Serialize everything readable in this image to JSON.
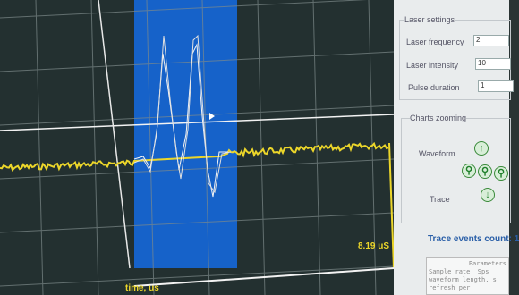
{
  "panel": {
    "laser_settings": {
      "title": "Laser settings",
      "fields": [
        {
          "label": "Laser frequency",
          "value": "2"
        },
        {
          "label": "Laser intensity",
          "value": "10"
        },
        {
          "label": "Pulse duration",
          "value": "1"
        }
      ]
    },
    "charts_zooming": {
      "title": "Charts zooming",
      "items": [
        "Waveform",
        "Trace"
      ]
    },
    "trace_events": "Trace events count: 1",
    "parameters": {
      "header": "Parameters",
      "lines": [
        "Sample rate, Sps",
        "waveform length, s",
        "refresh per"
      ]
    }
  },
  "chart": {
    "time_label": "time, us",
    "marker_label": "8.19 uS"
  }
}
